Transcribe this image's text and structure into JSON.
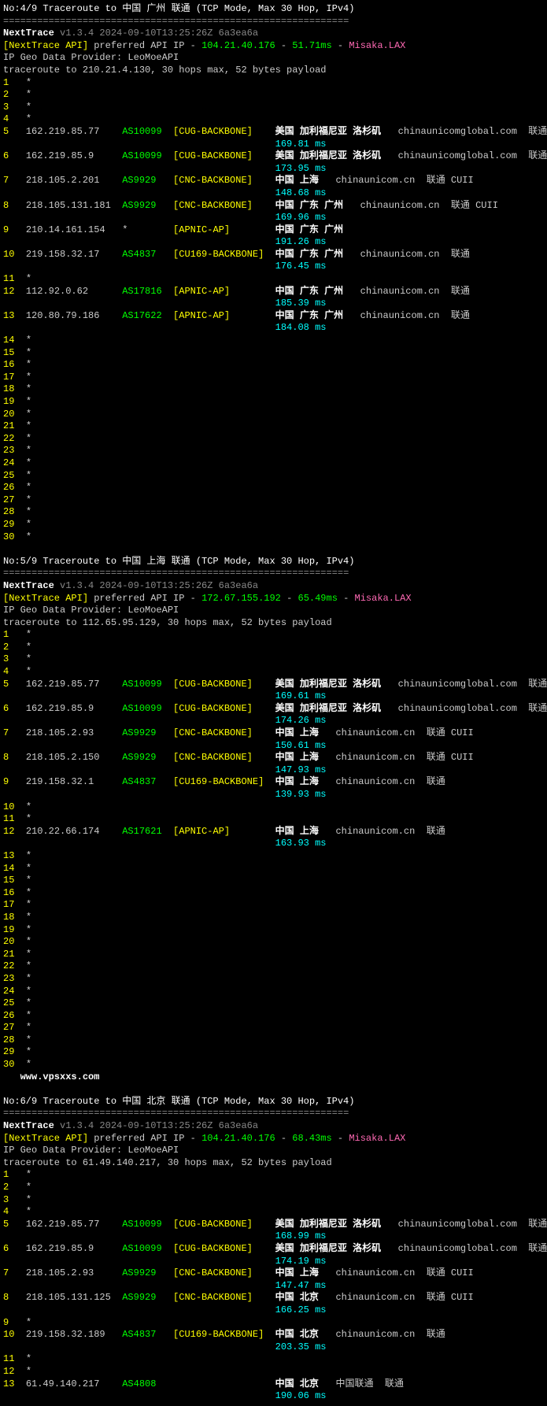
{
  "sections": [
    {
      "header": "No:4/9 Traceroute to 中国 广州 联通 (TCP Mode, Max 30 Hop, IPv4)",
      "divider": "=============================================================",
      "appname": "NextTrace",
      "version": "v1.3.4 2024-09-10T13:25:26Z 6a3ea6a",
      "api_prefix": "[NextTrace API]",
      "api_text": " preferred API IP - ",
      "api_ip": "104.21.40.176",
      "api_sep": " - ",
      "api_latency": "51.71ms",
      "api_sep2": " - ",
      "api_loc": "Misaka.LAX",
      "provider": "IP Geo Data Provider: LeoMoeAPI",
      "traceroute": "traceroute to 210.21.4.130, 30 hops max, 52 bytes payload",
      "watermark": "",
      "hops": [
        {
          "n": "1",
          "ip": "*"
        },
        {
          "n": "2",
          "ip": "*"
        },
        {
          "n": "3",
          "ip": "*"
        },
        {
          "n": "4",
          "ip": "*"
        },
        {
          "n": "5",
          "ip": "162.219.85.77",
          "as": "AS10099",
          "net": "[CUG-BACKBONE]",
          "loc": "美国 加利福尼亚 洛杉矶",
          "host": "chinaunicomglobal.com",
          "isp": "联通",
          "ms": "169.81 ms"
        },
        {
          "n": "6",
          "ip": "162.219.85.9",
          "as": "AS10099",
          "net": "[CUG-BACKBONE]",
          "loc": "美国 加利福尼亚 洛杉矶",
          "host": "chinaunicomglobal.com",
          "isp": "联通",
          "ms": "173.95 ms"
        },
        {
          "n": "7",
          "ip": "218.105.2.201",
          "as": "AS9929",
          "net": "[CNC-BACKBONE]",
          "loc": "中国 上海",
          "host": "chinaunicom.cn",
          "isp": "联通 CUII",
          "ms": "148.68 ms"
        },
        {
          "n": "8",
          "ip": "218.105.131.181",
          "as": "AS9929",
          "net": "[CNC-BACKBONE]",
          "loc": "中国 广东 广州",
          "host": "chinaunicom.cn",
          "isp": "联通 CUII",
          "ms": "169.96 ms"
        },
        {
          "n": "9",
          "ip": "210.14.161.154",
          "as": "*",
          "net": "[APNIC-AP]",
          "loc": "中国 广东 广州",
          "host": "",
          "isp": "",
          "ms": "191.26 ms"
        },
        {
          "n": "10",
          "ip": "219.158.32.17",
          "as": "AS4837",
          "net": "[CU169-BACKBONE]",
          "loc": "中国 广东 广州",
          "host": "chinaunicom.cn",
          "isp": "联通",
          "ms": "176.45 ms"
        },
        {
          "n": "11",
          "ip": "*"
        },
        {
          "n": "12",
          "ip": "112.92.0.62",
          "as": "AS17816",
          "net": "[APNIC-AP]",
          "loc": "中国 广东 广州",
          "host": "chinaunicom.cn",
          "isp": "联通",
          "ms": "185.39 ms"
        },
        {
          "n": "13",
          "ip": "120.80.79.186",
          "as": "AS17622",
          "net": "[APNIC-AP]",
          "loc": "中国 广东 广州",
          "host": "chinaunicom.cn",
          "isp": "联通",
          "ms": "184.08 ms"
        },
        {
          "n": "14",
          "ip": "*"
        },
        {
          "n": "15",
          "ip": "*"
        },
        {
          "n": "16",
          "ip": "*"
        },
        {
          "n": "17",
          "ip": "*"
        },
        {
          "n": "18",
          "ip": "*"
        },
        {
          "n": "19",
          "ip": "*"
        },
        {
          "n": "20",
          "ip": "*"
        },
        {
          "n": "21",
          "ip": "*"
        },
        {
          "n": "22",
          "ip": "*"
        },
        {
          "n": "23",
          "ip": "*"
        },
        {
          "n": "24",
          "ip": "*"
        },
        {
          "n": "25",
          "ip": "*"
        },
        {
          "n": "26",
          "ip": "*"
        },
        {
          "n": "27",
          "ip": "*"
        },
        {
          "n": "28",
          "ip": "*"
        },
        {
          "n": "29",
          "ip": "*"
        },
        {
          "n": "30",
          "ip": "*"
        }
      ]
    },
    {
      "header": "No:5/9 Traceroute to 中国 上海 联通 (TCP Mode, Max 30 Hop, IPv4)",
      "divider": "=============================================================",
      "appname": "NextTrace",
      "version": "v1.3.4 2024-09-10T13:25:26Z 6a3ea6a",
      "api_prefix": "[NextTrace API]",
      "api_text": " preferred API IP - ",
      "api_ip": "172.67.155.192",
      "api_sep": " - ",
      "api_latency": "65.49ms",
      "api_sep2": " - ",
      "api_loc": "Misaka.LAX",
      "provider": "IP Geo Data Provider: LeoMoeAPI",
      "traceroute": "traceroute to 112.65.95.129, 30 hops max, 52 bytes payload",
      "watermark": "www.vpsxxs.com",
      "hops": [
        {
          "n": "1",
          "ip": "*"
        },
        {
          "n": "2",
          "ip": "*"
        },
        {
          "n": "3",
          "ip": "*"
        },
        {
          "n": "4",
          "ip": "*"
        },
        {
          "n": "5",
          "ip": "162.219.85.77",
          "as": "AS10099",
          "net": "[CUG-BACKBONE]",
          "loc": "美国 加利福尼亚 洛杉矶",
          "host": "chinaunicomglobal.com",
          "isp": "联通",
          "ms": "169.61 ms"
        },
        {
          "n": "6",
          "ip": "162.219.85.9",
          "as": "AS10099",
          "net": "[CUG-BACKBONE]",
          "loc": "美国 加利福尼亚 洛杉矶",
          "host": "chinaunicomglobal.com",
          "isp": "联通",
          "ms": "174.26 ms"
        },
        {
          "n": "7",
          "ip": "218.105.2.93",
          "as": "AS9929",
          "net": "[CNC-BACKBONE]",
          "loc": "中国 上海",
          "host": "chinaunicom.cn",
          "isp": "联通 CUII",
          "ms": "150.61 ms"
        },
        {
          "n": "8",
          "ip": "218.105.2.150",
          "as": "AS9929",
          "net": "[CNC-BACKBONE]",
          "loc": "中国 上海",
          "host": "chinaunicom.cn",
          "isp": "联通 CUII",
          "ms": "147.93 ms"
        },
        {
          "n": "9",
          "ip": "219.158.32.1",
          "as": "AS4837",
          "net": "[CU169-BACKBONE]",
          "loc": "中国 上海",
          "host": "chinaunicom.cn",
          "isp": "联通",
          "ms": "139.93 ms"
        },
        {
          "n": "10",
          "ip": "*"
        },
        {
          "n": "11",
          "ip": "*"
        },
        {
          "n": "12",
          "ip": "210.22.66.174",
          "as": "AS17621",
          "net": "[APNIC-AP]",
          "loc": "中国 上海",
          "host": "chinaunicom.cn",
          "isp": "联通",
          "ms": "163.93 ms"
        },
        {
          "n": "13",
          "ip": "*"
        },
        {
          "n": "14",
          "ip": "*"
        },
        {
          "n": "15",
          "ip": "*"
        },
        {
          "n": "16",
          "ip": "*"
        },
        {
          "n": "17",
          "ip": "*"
        },
        {
          "n": "18",
          "ip": "*"
        },
        {
          "n": "19",
          "ip": "*"
        },
        {
          "n": "20",
          "ip": "*"
        },
        {
          "n": "21",
          "ip": "*"
        },
        {
          "n": "22",
          "ip": "*"
        },
        {
          "n": "23",
          "ip": "*"
        },
        {
          "n": "24",
          "ip": "*"
        },
        {
          "n": "25",
          "ip": "*"
        },
        {
          "n": "26",
          "ip": "*"
        },
        {
          "n": "27",
          "ip": "*"
        },
        {
          "n": "28",
          "ip": "*"
        },
        {
          "n": "29",
          "ip": "*"
        },
        {
          "n": "30",
          "ip": "*"
        }
      ]
    },
    {
      "header": "No:6/9 Traceroute to 中国 北京 联通 (TCP Mode, Max 30 Hop, IPv4)",
      "divider": "=============================================================",
      "appname": "NextTrace",
      "version": "v1.3.4 2024-09-10T13:25:26Z 6a3ea6a",
      "api_prefix": "[NextTrace API]",
      "api_text": " preferred API IP - ",
      "api_ip": "104.21.40.176",
      "api_sep": " - ",
      "api_latency": "68.43ms",
      "api_sep2": " - ",
      "api_loc": "Misaka.LAX",
      "provider": "IP Geo Data Provider: LeoMoeAPI",
      "traceroute": "traceroute to 61.49.140.217, 30 hops max, 52 bytes payload",
      "watermark": "",
      "hops": [
        {
          "n": "1",
          "ip": "*"
        },
        {
          "n": "2",
          "ip": "*"
        },
        {
          "n": "3",
          "ip": "*"
        },
        {
          "n": "4",
          "ip": "*"
        },
        {
          "n": "5",
          "ip": "162.219.85.77",
          "as": "AS10099",
          "net": "[CUG-BACKBONE]",
          "loc": "美国 加利福尼亚 洛杉矶",
          "host": "chinaunicomglobal.com",
          "isp": "联通",
          "ms": "168.99 ms"
        },
        {
          "n": "6",
          "ip": "162.219.85.9",
          "as": "AS10099",
          "net": "[CUG-BACKBONE]",
          "loc": "美国 加利福尼亚 洛杉矶",
          "host": "chinaunicomglobal.com",
          "isp": "联通",
          "ms": "174.19 ms"
        },
        {
          "n": "7",
          "ip": "218.105.2.93",
          "as": "AS9929",
          "net": "[CNC-BACKBONE]",
          "loc": "中国 上海",
          "host": "chinaunicom.cn",
          "isp": "联通 CUII",
          "ms": "147.47 ms"
        },
        {
          "n": "8",
          "ip": "218.105.131.125",
          "as": "AS9929",
          "net": "[CNC-BACKBONE]",
          "loc": "中国 北京",
          "host": "chinaunicom.cn",
          "isp": "联通 CUII",
          "ms": "166.25 ms"
        },
        {
          "n": "9",
          "ip": "*"
        },
        {
          "n": "10",
          "ip": "219.158.32.189",
          "as": "AS4837",
          "net": "[CU169-BACKBONE]",
          "loc": "中国 北京",
          "host": "chinaunicom.cn",
          "isp": "联通",
          "ms": "203.35 ms"
        },
        {
          "n": "11",
          "ip": "*"
        },
        {
          "n": "12",
          "ip": "*"
        },
        {
          "n": "13",
          "ip": "61.49.140.217",
          "as": "AS4808",
          "net": "",
          "loc": "中国 北京",
          "host": "中国联通",
          "isp": "联通",
          "ms": "190.06 ms"
        }
      ]
    }
  ],
  "colors": {
    "bg": "#000000",
    "text": "#cccccc",
    "green": "#00ff00",
    "yellow": "#ffff00",
    "cyan": "#00ffff",
    "white": "#ffffff",
    "gray": "#888888",
    "pink": "#ff69b4"
  },
  "columns": {
    "hop_width": 4,
    "ip_width": 17,
    "as_width": 9,
    "net_width": 18,
    "loc_start_col": 48,
    "ms_indent": 48
  }
}
